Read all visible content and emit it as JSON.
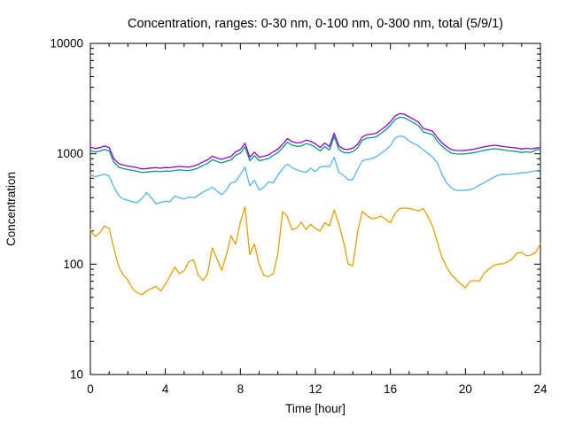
{
  "page": {
    "background_color": "#ffffff",
    "text_color": "#000000"
  },
  "chart_data": {
    "type": "line",
    "title": "Concentration, ranges: 0-30 nm, 0-100 nm, 0-300 nm, total (5/9/1)",
    "xlabel": "Time [hour]",
    "ylabel": "Concentration",
    "grid": false,
    "legend": "none",
    "axis_color": "#000000",
    "x_axis": {
      "min": 0,
      "max": 24,
      "major_ticks": [
        0,
        4,
        8,
        12,
        16,
        20,
        24
      ],
      "minor_tick_interval": 1,
      "ticks_mirrored_top": true
    },
    "y_axis": {
      "scale": "log",
      "min": 10,
      "max": 10000,
      "major_ticks": [
        10,
        100,
        1000,
        10000
      ],
      "minor_ticks_per_decade": [
        2,
        3,
        4,
        5,
        6,
        7,
        8,
        9
      ],
      "ticks_mirrored_right": true
    },
    "x_start": 0,
    "x_step": 0.25,
    "series": [
      {
        "name": "total",
        "color": "#9400d3",
        "values": [
          1150,
          1115,
          1135,
          1175,
          1140,
          905,
          815,
          790,
          775,
          762,
          748,
          728,
          735,
          742,
          748,
          740,
          750,
          748,
          760,
          768,
          762,
          758,
          775,
          800,
          845,
          880,
          950,
          915,
          890,
          920,
          945,
          1040,
          1090,
          1245,
          930,
          1035,
          930,
          950,
          975,
          1040,
          1100,
          1220,
          1370,
          1290,
          1255,
          1265,
          1330,
          1300,
          1230,
          1140,
          1250,
          1160,
          1540,
          1180,
          1105,
          1095,
          1125,
          1215,
          1420,
          1490,
          1505,
          1530,
          1650,
          1770,
          1950,
          2200,
          2310,
          2280,
          2160,
          2050,
          1930,
          1700,
          1650,
          1600,
          1400,
          1260,
          1160,
          1090,
          1070,
          1068,
          1075,
          1085,
          1105,
          1130,
          1155,
          1175,
          1195,
          1185,
          1165,
          1150,
          1140,
          1125,
          1105,
          1118,
          1108,
          1125,
          1140
        ]
      },
      {
        "name": "0-300 nm",
        "color": "#009e73",
        "values": [
          1070,
          1038,
          1056,
          1092,
          1060,
          842,
          757,
          734,
          720,
          708,
          695,
          676,
          683,
          690,
          695,
          688,
          697,
          695,
          706,
          714,
          708,
          704,
          720,
          744,
          786,
          818,
          883,
          851,
          827,
          855,
          879,
          967,
          1013,
          1158,
          865,
          962,
          865,
          883,
          906,
          967,
          1023,
          1134,
          1274,
          1200,
          1167,
          1176,
          1237,
          1209,
          1144,
          1060,
          1162,
          1079,
          1432,
          1097,
          1027,
          1018,
          1046,
          1130,
          1320,
          1385,
          1400,
          1423,
          1534,
          1646,
          1813,
          2046,
          2148,
          2120,
          2009,
          1906,
          1795,
          1581,
          1534,
          1488,
          1302,
          1172,
          1079,
          1014,
          995,
          993,
          1000,
          1009,
          1028,
          1051,
          1074,
          1093,
          1111,
          1102,
          1083,
          1070,
          1060,
          1046,
          1028,
          1040,
          1030,
          1080,
          1103
        ]
      },
      {
        "name": "0-100 nm",
        "color": "#56b4e9",
        "values": [
          650,
          620,
          635,
          655,
          630,
          500,
          420,
          390,
          378,
          368,
          360,
          395,
          445,
          400,
          352,
          362,
          372,
          368,
          415,
          398,
          390,
          405,
          398,
          420,
          448,
          470,
          498,
          460,
          426,
          470,
          545,
          560,
          650,
          755,
          512,
          575,
          470,
          497,
          555,
          545,
          640,
          730,
          805,
          750,
          715,
          695,
          675,
          740,
          690,
          760,
          770,
          762,
          930,
          675,
          640,
          580,
          585,
          720,
          860,
          890,
          900,
          940,
          1010,
          1080,
          1180,
          1390,
          1450,
          1420,
          1300,
          1240,
          1180,
          1080,
          1010,
          930,
          830,
          650,
          545,
          490,
          468,
          465,
          468,
          470,
          490,
          520,
          545,
          580,
          612,
          640,
          652,
          650,
          655,
          662,
          670,
          676,
          688,
          700,
          715
        ]
      },
      {
        "name": "0-30 nm",
        "color": "#e69f00",
        "values": [
          205,
          178,
          192,
          222,
          210,
          140,
          96,
          80,
          72,
          60,
          55,
          53,
          57,
          60,
          63,
          57,
          66,
          78,
          94,
          82,
          87,
          105,
          110,
          80,
          71,
          82,
          140,
          112,
          88,
          121,
          180,
          152,
          240,
          330,
          122,
          152,
          100,
          79,
          77,
          82,
          125,
          300,
          270,
          205,
          212,
          240,
          206,
          230,
          210,
          200,
          237,
          222,
          310,
          230,
          160,
          100,
          97,
          195,
          300,
          276,
          258,
          262,
          273,
          255,
          237,
          290,
          320,
          322,
          320,
          313,
          303,
          320,
          270,
          220,
          160,
          115,
          94,
          80,
          73,
          66,
          61,
          70,
          71,
          70,
          83,
          90,
          97,
          100,
          101,
          105,
          112,
          126,
          128,
          119,
          121,
          128,
          153
        ]
      }
    ]
  }
}
